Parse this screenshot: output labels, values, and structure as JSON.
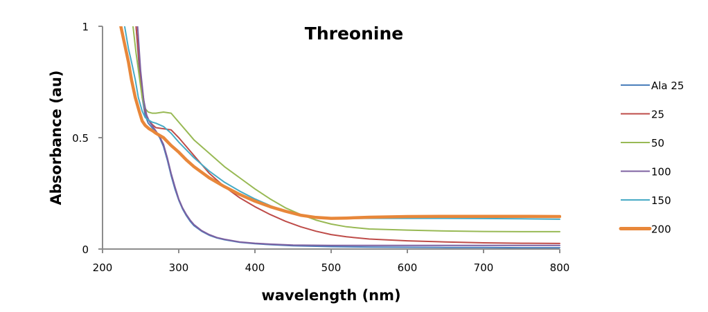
{
  "chart_data": {
    "type": "line",
    "title": "Threonine",
    "xlabel": "wavelength (nm)",
    "ylabel": "Absorbance (au)",
    "xlim": [
      200,
      800
    ],
    "ylim": [
      0,
      1
    ],
    "x_ticks": [
      200,
      300,
      400,
      500,
      600,
      700,
      800
    ],
    "x_tick_labels": [
      "200",
      "300",
      "400",
      "500",
      "600",
      "700",
      "800"
    ],
    "y_ticks": [
      0,
      0.5,
      1
    ],
    "y_tick_labels": [
      "0",
      "0.5",
      "1"
    ],
    "grid": false,
    "legend_position": "right",
    "series": [
      {
        "name": "Ala 25",
        "color": "#4A7EBB",
        "width": 2,
        "x": [
          244,
          248,
          252,
          256,
          260,
          265,
          270,
          275,
          280,
          285,
          290,
          295,
          300,
          305,
          310,
          315,
          320,
          330,
          340,
          350,
          360,
          380,
          400,
          420,
          450,
          500,
          550,
          600,
          650,
          700,
          750,
          800
        ],
        "y": [
          1.0,
          0.82,
          0.68,
          0.6,
          0.565,
          0.545,
          0.525,
          0.5,
          0.46,
          0.4,
          0.33,
          0.27,
          0.22,
          0.18,
          0.15,
          0.125,
          0.105,
          0.08,
          0.062,
          0.05,
          0.042,
          0.03,
          0.024,
          0.02,
          0.015,
          0.011,
          0.009,
          0.008,
          0.007,
          0.007,
          0.006,
          0.006
        ]
      },
      {
        "name": "25",
        "color": "#BE4B48",
        "width": 2,
        "x": [
          244,
          248,
          252,
          256,
          260,
          265,
          270,
          280,
          290,
          300,
          310,
          320,
          330,
          340,
          350,
          360,
          380,
          400,
          420,
          440,
          460,
          480,
          500,
          520,
          550,
          600,
          650,
          700,
          750,
          800
        ],
        "y": [
          1.0,
          0.84,
          0.72,
          0.62,
          0.58,
          0.56,
          0.545,
          0.54,
          0.535,
          0.5,
          0.46,
          0.42,
          0.38,
          0.34,
          0.31,
          0.28,
          0.23,
          0.19,
          0.155,
          0.125,
          0.1,
          0.08,
          0.065,
          0.055,
          0.045,
          0.037,
          0.032,
          0.028,
          0.026,
          0.025
        ]
      },
      {
        "name": "50",
        "color": "#98B954",
        "width": 2,
        "x": [
          240,
          244,
          248,
          252,
          256,
          260,
          265,
          270,
          280,
          290,
          300,
          310,
          320,
          340,
          360,
          380,
          400,
          420,
          440,
          460,
          480,
          500,
          520,
          550,
          600,
          650,
          700,
          750,
          800
        ],
        "y": [
          1.0,
          0.88,
          0.78,
          0.68,
          0.63,
          0.615,
          0.61,
          0.61,
          0.615,
          0.61,
          0.57,
          0.53,
          0.49,
          0.43,
          0.37,
          0.32,
          0.27,
          0.225,
          0.185,
          0.155,
          0.13,
          0.112,
          0.1,
          0.09,
          0.085,
          0.081,
          0.079,
          0.078,
          0.078
        ]
      },
      {
        "name": "100",
        "color": "#7D60A0",
        "width": 2,
        "x": [
          246,
          250,
          254,
          258,
          262,
          266,
          270,
          275,
          280,
          285,
          290,
          295,
          300,
          305,
          310,
          315,
          320,
          330,
          340,
          350,
          360,
          380,
          400,
          420,
          450,
          500,
          550,
          600,
          650,
          700,
          750,
          800
        ],
        "y": [
          1.0,
          0.8,
          0.67,
          0.6,
          0.57,
          0.55,
          0.53,
          0.505,
          0.47,
          0.41,
          0.34,
          0.28,
          0.225,
          0.185,
          0.155,
          0.13,
          0.11,
          0.083,
          0.065,
          0.052,
          0.044,
          0.032,
          0.026,
          0.022,
          0.018,
          0.016,
          0.016,
          0.016,
          0.016,
          0.016,
          0.016,
          0.016
        ]
      },
      {
        "name": "150",
        "color": "#46AAC5",
        "width": 2,
        "x": [
          229,
          234,
          238,
          243,
          247,
          252,
          256,
          260,
          265,
          270,
          280,
          290,
          300,
          310,
          320,
          340,
          360,
          380,
          400,
          420,
          440,
          460,
          480,
          500,
          550,
          600,
          650,
          700,
          750,
          800
        ],
        "y": [
          1.0,
          0.9,
          0.84,
          0.76,
          0.68,
          0.62,
          0.59,
          0.58,
          0.57,
          0.565,
          0.55,
          0.52,
          0.48,
          0.445,
          0.41,
          0.35,
          0.3,
          0.26,
          0.225,
          0.195,
          0.17,
          0.15,
          0.14,
          0.137,
          0.138,
          0.138,
          0.138,
          0.137,
          0.136,
          0.134
        ]
      },
      {
        "name": "200",
        "color": "#E8873A",
        "width": 4.5,
        "x": [
          224,
          229,
          234,
          238,
          243,
          248,
          252,
          256,
          261,
          266,
          270,
          280,
          290,
          300,
          310,
          320,
          340,
          360,
          380,
          400,
          420,
          440,
          460,
          480,
          500,
          520,
          550,
          600,
          650,
          700,
          750,
          800
        ],
        "y": [
          1.0,
          0.92,
          0.84,
          0.76,
          0.68,
          0.62,
          0.575,
          0.555,
          0.54,
          0.53,
          0.52,
          0.5,
          0.465,
          0.435,
          0.4,
          0.37,
          0.32,
          0.28,
          0.245,
          0.215,
          0.19,
          0.17,
          0.152,
          0.142,
          0.138,
          0.139,
          0.143,
          0.146,
          0.147,
          0.147,
          0.147,
          0.146
        ]
      }
    ]
  }
}
